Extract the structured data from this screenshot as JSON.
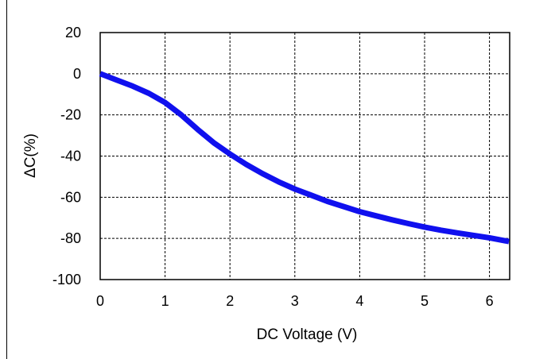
{
  "chart_data": {
    "type": "line",
    "title": "",
    "xlabel": "DC Voltage  (V)",
    "ylabel": "ΔC(%)",
    "xlim": [
      0,
      6.3
    ],
    "ylim": [
      -100,
      20
    ],
    "x_ticks": [
      0,
      1,
      2,
      3,
      4,
      5,
      6
    ],
    "y_ticks": [
      20,
      0,
      -20,
      -40,
      -60,
      -80,
      -100
    ],
    "x_tick_labels": [
      "0",
      "1",
      "2",
      "3",
      "4",
      "5",
      "6"
    ],
    "y_tick_labels": [
      "20",
      "0",
      "-20",
      "-40",
      "-60",
      "-80",
      "-100"
    ],
    "grid": true,
    "grid_style": "dashed",
    "series": [
      {
        "color": "#1010ee",
        "x": [
          0,
          0.25,
          0.5,
          0.75,
          1.0,
          1.25,
          1.5,
          1.75,
          2.0,
          2.25,
          2.5,
          2.75,
          3.0,
          3.25,
          3.5,
          3.75,
          4.0,
          4.25,
          4.5,
          4.75,
          5.0,
          5.25,
          5.5,
          5.75,
          6.0,
          6.3
        ],
        "y": [
          0,
          -3,
          -6,
          -9.5,
          -14,
          -20,
          -27,
          -33.5,
          -39,
          -44,
          -48.5,
          -52.5,
          -56,
          -59,
          -62,
          -64.5,
          -67,
          -69,
          -71,
          -72.8,
          -74.5,
          -76,
          -77.3,
          -78.5,
          -79.7,
          -81.5
        ]
      }
    ]
  }
}
